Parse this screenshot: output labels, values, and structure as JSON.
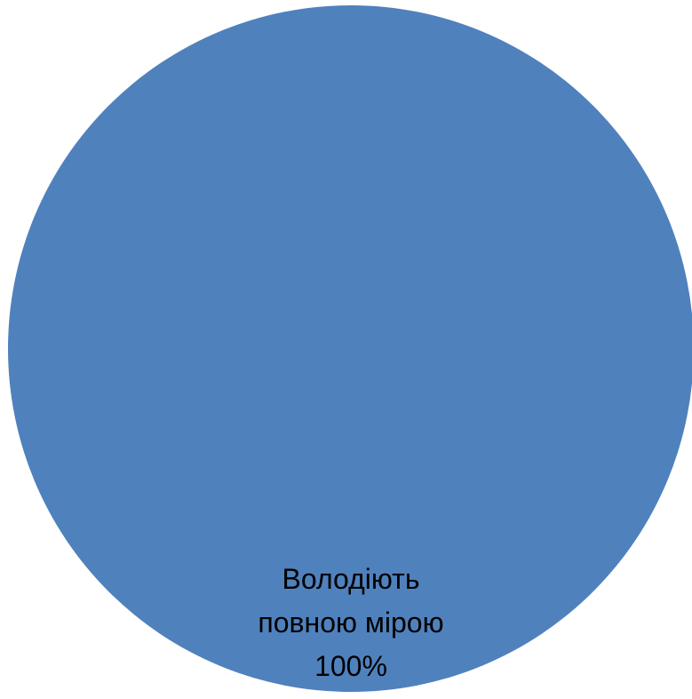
{
  "chart_data": {
    "type": "pie",
    "slices": [
      {
        "label_lines": [
          "Володіють",
          "повною мірою"
        ],
        "value_label": "100%",
        "value": 100,
        "color": "#4F81BD"
      }
    ],
    "legend": "none"
  }
}
